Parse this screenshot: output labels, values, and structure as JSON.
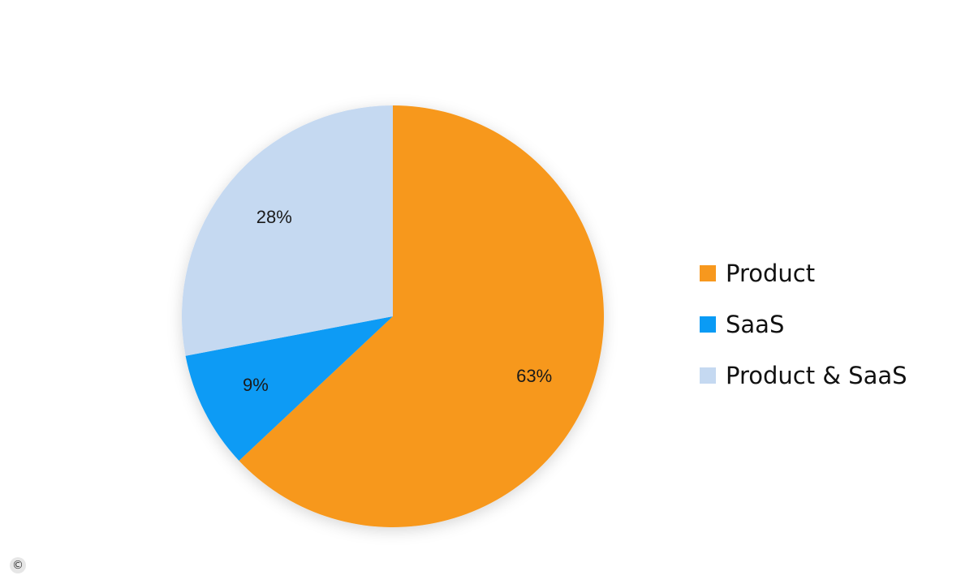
{
  "chart_data": {
    "type": "pie",
    "title": "",
    "legend_position": "right",
    "categories": [
      "Product",
      "SaaS",
      "Product & SaaS"
    ],
    "values": [
      63,
      9,
      28
    ],
    "data_labels": [
      "63%",
      "9%",
      "28%"
    ],
    "colors": [
      "#F7981E",
      "#0A9BF5",
      "#C5D9F1"
    ]
  },
  "copyright_symbol": "©"
}
